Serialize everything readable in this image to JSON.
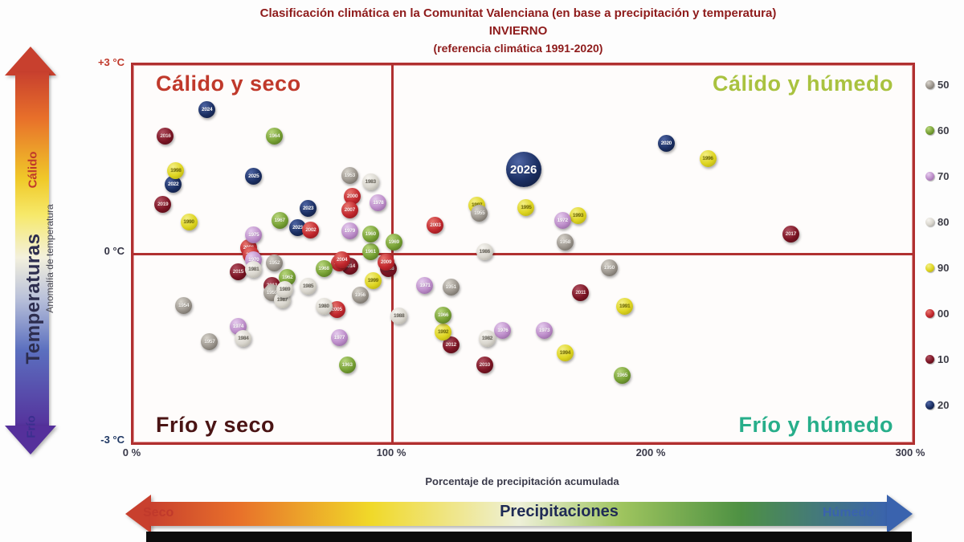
{
  "title": {
    "line1": "Clasificación climática en la Comunitat Valenciana (en base a precipitación y temperatura)",
    "line2": "INVIERNO",
    "line3": "(referencia climática 1991-2020)",
    "color": "#8e1b1b"
  },
  "quadrants": {
    "tl": {
      "label": "Cálido y seco",
      "color": "#c0392b"
    },
    "tr": {
      "label": "Cálido y húmedo",
      "color": "#a9c23f"
    },
    "bl": {
      "label": "Frío y seco",
      "color": "#4a1414"
    },
    "br": {
      "label": "Frío y húmedo",
      "color": "#27ae8a"
    }
  },
  "temperature_arrow": {
    "top_label": "Cálido",
    "top_color": "#c0392b",
    "mid_label": "Temperaturas",
    "mid_color": "#2d2d4e",
    "bottom_label": "Frío",
    "bottom_color": "#3b2f8f"
  },
  "precipitation_arrow": {
    "left_label": "Seco",
    "left_color": "#c0392b",
    "mid_label": "Precipitaciones",
    "mid_color": "#1f2a55",
    "right_label": "Húmedo",
    "right_color": "#3a63ae"
  },
  "legend": {
    "items": [
      {
        "label": "50",
        "decade": "50"
      },
      {
        "label": "60",
        "decade": "60"
      },
      {
        "label": "70",
        "decade": "70"
      },
      {
        "label": "80",
        "decade": "80"
      },
      {
        "label": "90",
        "decade": "90"
      },
      {
        "label": "00",
        "decade": "00"
      },
      {
        "label": "10",
        "decade": "10"
      },
      {
        "label": "20",
        "decade": "20"
      }
    ]
  },
  "chart_data": {
    "type": "scatter",
    "title": "Clasificación climática en la Comunitat Valenciana — INVIERNO (referencia climática 1991-2020)",
    "xlabel": "Porcentaje de precipitación acumulada",
    "ylabel": "Anomalía de temperatura",
    "xlim": [
      0,
      300
    ],
    "ylim": [
      -3,
      3
    ],
    "x_ticks": [
      {
        "label": "0 %",
        "value": 0
      },
      {
        "label": "100 %",
        "value": 100
      },
      {
        "label": "200 %",
        "value": 200
      },
      {
        "label": "300 %",
        "value": 300
      }
    ],
    "y_ticks": [
      {
        "label": "+3 °C",
        "value": 3,
        "color": "#c0392b"
      },
      {
        "label": "0 °C",
        "value": 0,
        "color": "#333344"
      },
      {
        "label": "-3 °C",
        "value": -3,
        "color": "#1f3864"
      }
    ],
    "legend_position": "right",
    "grid": false,
    "decade_colors": {
      "50": {
        "base": "#9a948c",
        "hi": "#d8d4cc",
        "lo": "#5f5a52",
        "text": "#f4f2ee"
      },
      "60": {
        "base": "#76a033",
        "hi": "#b9d77e",
        "lo": "#44631a",
        "text": "#f2f7e6"
      },
      "70": {
        "base": "#bc8cc9",
        "hi": "#e6cdee",
        "lo": "#84588f",
        "text": "#ffffff"
      },
      "80": {
        "base": "#d9d6ce",
        "hi": "#f7f5f0",
        "lo": "#a09d93",
        "text": "#6e6a60"
      },
      "90": {
        "base": "#ddd41f",
        "hi": "#f4ef86",
        "lo": "#a39c10",
        "text": "#79730a"
      },
      "00": {
        "base": "#c1272d",
        "hi": "#e8766f",
        "lo": "#7e1218",
        "text": "#ffe9e9"
      },
      "10": {
        "base": "#7b1423",
        "hi": "#b05060",
        "lo": "#470a12",
        "text": "#f6dede"
      },
      "20": {
        "base": "#1b2f63",
        "hi": "#4f66a5",
        "lo": "#0d1733",
        "text": "#ffffff"
      }
    },
    "points": [
      {
        "year": "2026",
        "decade": "20",
        "x": 151,
        "y": 1.3,
        "big": true
      },
      {
        "year": "2024",
        "decade": "20",
        "x": 29,
        "y": 2.25
      },
      {
        "year": "2022",
        "decade": "20",
        "x": 16,
        "y": 1.06
      },
      {
        "year": "2025",
        "decade": "20",
        "x": 47,
        "y": 1.19
      },
      {
        "year": "2023",
        "decade": "20",
        "x": 68,
        "y": 0.68
      },
      {
        "year": "2021",
        "decade": "20",
        "x": 64,
        "y": 0.38
      },
      {
        "year": "2020",
        "decade": "20",
        "x": 206,
        "y": 1.72
      },
      {
        "year": "2016",
        "decade": "10",
        "x": 13,
        "y": 1.83
      },
      {
        "year": "2019",
        "decade": "10",
        "x": 12,
        "y": 0.75
      },
      {
        "year": "2017",
        "decade": "10",
        "x": 254,
        "y": 0.27
      },
      {
        "year": "2013",
        "decade": "10",
        "x": 54,
        "y": -0.54
      },
      {
        "year": "2012",
        "decade": "10",
        "x": 123,
        "y": -1.49
      },
      {
        "year": "2011",
        "decade": "10",
        "x": 173,
        "y": -0.66
      },
      {
        "year": "2015",
        "decade": "10",
        "x": 41,
        "y": -0.32
      },
      {
        "year": "2014",
        "decade": "10",
        "x": 84,
        "y": -0.24
      },
      {
        "year": "2010",
        "decade": "10",
        "x": 136,
        "y": -1.81
      },
      {
        "year": "2018",
        "decade": "10",
        "x": 99,
        "y": -0.28
      },
      {
        "year": "2000",
        "decade": "00",
        "x": 85,
        "y": 0.87
      },
      {
        "year": "2007",
        "decade": "00",
        "x": 84,
        "y": 0.66
      },
      {
        "year": "2002",
        "decade": "00",
        "x": 69,
        "y": 0.34
      },
      {
        "year": "2006",
        "decade": "00",
        "x": 45,
        "y": 0.06
      },
      {
        "year": "2003",
        "decade": "00",
        "x": 117,
        "y": 0.42
      },
      {
        "year": "2008",
        "decade": "00",
        "x": 46,
        "y": -0.06
      },
      {
        "year": "2001",
        "decade": "00",
        "x": 80,
        "y": -0.19
      },
      {
        "year": "2005",
        "decade": "00",
        "x": 79,
        "y": -0.92
      },
      {
        "year": "2004",
        "decade": "00",
        "x": 81,
        "y": -0.14
      },
      {
        "year": "2009",
        "decade": "00",
        "x": 98,
        "y": -0.17
      },
      {
        "year": "1998",
        "decade": "90",
        "x": 17,
        "y": 1.28
      },
      {
        "year": "1990",
        "decade": "90",
        "x": 22,
        "y": 0.47
      },
      {
        "year": "1997",
        "decade": "90",
        "x": 133,
        "y": 0.74
      },
      {
        "year": "1995",
        "decade": "90",
        "x": 152,
        "y": 0.7
      },
      {
        "year": "1993",
        "decade": "90",
        "x": 172,
        "y": 0.57
      },
      {
        "year": "1996",
        "decade": "90",
        "x": 222,
        "y": 1.48
      },
      {
        "year": "1999",
        "decade": "90",
        "x": 93,
        "y": -0.47
      },
      {
        "year": "1992",
        "decade": "90",
        "x": 120,
        "y": -1.28
      },
      {
        "year": "1991",
        "decade": "90",
        "x": 190,
        "y": -0.87
      },
      {
        "year": "1994",
        "decade": "90",
        "x": 167,
        "y": -1.62
      },
      {
        "year": "1964",
        "decade": "60",
        "x": 55,
        "y": 1.83
      },
      {
        "year": "1967",
        "decade": "60",
        "x": 57,
        "y": 0.49
      },
      {
        "year": "1961",
        "decade": "60",
        "x": 92,
        "y": 0.0
      },
      {
        "year": "1969",
        "decade": "60",
        "x": 101,
        "y": 0.15
      },
      {
        "year": "1968",
        "decade": "60",
        "x": 74,
        "y": -0.28
      },
      {
        "year": "1962",
        "decade": "60",
        "x": 60,
        "y": -0.41
      },
      {
        "year": "1963",
        "decade": "60",
        "x": 83,
        "y": -1.81
      },
      {
        "year": "1966",
        "decade": "60",
        "x": 120,
        "y": -1.01
      },
      {
        "year": "1965",
        "decade": "60",
        "x": 189,
        "y": -1.97
      },
      {
        "year": "1960",
        "decade": "60",
        "x": 92,
        "y": 0.28
      },
      {
        "year": "1975",
        "decade": "70",
        "x": 47,
        "y": 0.26
      },
      {
        "year": "1979",
        "decade": "70",
        "x": 84,
        "y": 0.32
      },
      {
        "year": "1972",
        "decade": "70",
        "x": 166,
        "y": 0.49
      },
      {
        "year": "1970",
        "decade": "70",
        "x": 47,
        "y": -0.13
      },
      {
        "year": "1974",
        "decade": "70",
        "x": 41,
        "y": -1.19
      },
      {
        "year": "1977",
        "decade": "70",
        "x": 80,
        "y": -1.37
      },
      {
        "year": "1971",
        "decade": "70",
        "x": 113,
        "y": -0.54
      },
      {
        "year": "1976",
        "decade": "70",
        "x": 143,
        "y": -1.26
      },
      {
        "year": "1973",
        "decade": "70",
        "x": 159,
        "y": -1.26
      },
      {
        "year": "1978",
        "decade": "70",
        "x": 95,
        "y": 0.77
      },
      {
        "year": "1953",
        "decade": "50",
        "x": 84,
        "y": 1.21
      },
      {
        "year": "1955",
        "decade": "50",
        "x": 134,
        "y": 0.61
      },
      {
        "year": "1958",
        "decade": "50",
        "x": 167,
        "y": 0.15
      },
      {
        "year": "1952",
        "decade": "50",
        "x": 55,
        "y": -0.19
      },
      {
        "year": "1959",
        "decade": "50",
        "x": 54,
        "y": -0.66
      },
      {
        "year": "1956",
        "decade": "50",
        "x": 88,
        "y": -0.7
      },
      {
        "year": "1954",
        "decade": "50",
        "x": 20,
        "y": -0.86
      },
      {
        "year": "1957",
        "decade": "50",
        "x": 30,
        "y": -1.44
      },
      {
        "year": "1950",
        "decade": "50",
        "x": 184,
        "y": -0.26
      },
      {
        "year": "1951",
        "decade": "50",
        "x": 123,
        "y": -0.57
      },
      {
        "year": "1983",
        "decade": "80",
        "x": 92,
        "y": 1.1
      },
      {
        "year": "1986",
        "decade": "80",
        "x": 136,
        "y": 0.0
      },
      {
        "year": "1981",
        "decade": "80",
        "x": 47,
        "y": -0.29
      },
      {
        "year": "1987",
        "decade": "80",
        "x": 58,
        "y": -0.77
      },
      {
        "year": "1985",
        "decade": "80",
        "x": 68,
        "y": -0.55
      },
      {
        "year": "1980",
        "decade": "80",
        "x": 74,
        "y": -0.87
      },
      {
        "year": "1984",
        "decade": "80",
        "x": 43,
        "y": -1.38
      },
      {
        "year": "1988",
        "decade": "80",
        "x": 103,
        "y": -1.03
      },
      {
        "year": "1982",
        "decade": "80",
        "x": 137,
        "y": -1.38
      },
      {
        "year": "1989",
        "decade": "80",
        "x": 59,
        "y": -0.61
      }
    ]
  }
}
